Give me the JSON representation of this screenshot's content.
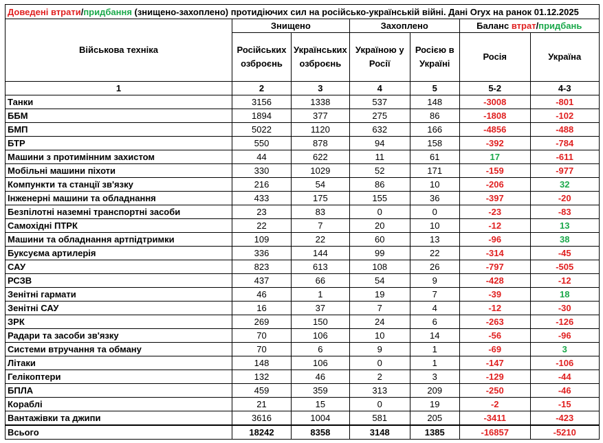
{
  "header": {
    "title_parts": [
      "Доведені втрати",
      "/",
      "придбання",
      " (знищено-захоплено) протидіючих сил на російсько-українській війні. Дані Oryx на ранок 01.12.2025"
    ]
  },
  "table": {
    "group_headers": {
      "destroyed": "Знищено",
      "captured": "Захоплено",
      "balance_parts": [
        "Баланс ",
        "втрат",
        "/",
        "придбань"
      ]
    },
    "column_headers": [
      "Військова техніка",
      "Російських озброєнь",
      "Українських озброєнь",
      "Україною у Росії",
      "Росією в Україні",
      "Росія",
      "Україна"
    ],
    "column_numbers": [
      "1",
      "2",
      "3",
      "4",
      "5",
      "5-2",
      "4-3"
    ],
    "rows": [
      [
        "Танки",
        3156,
        1338,
        537,
        148,
        -3008,
        -801
      ],
      [
        "ББМ",
        1894,
        377,
        275,
        86,
        -1808,
        -102
      ],
      [
        "БМП",
        5022,
        1120,
        632,
        166,
        -4856,
        -488
      ],
      [
        "БТР",
        550,
        878,
        94,
        158,
        -392,
        -784
      ],
      [
        "Машини з протимінним захистом",
        44,
        622,
        11,
        61,
        17,
        -611
      ],
      [
        "Мобільні машини піхоти",
        330,
        1029,
        52,
        171,
        -159,
        -977
      ],
      [
        "Компункти та станції зв'язку",
        216,
        54,
        86,
        10,
        -206,
        32
      ],
      [
        "Інженерні машини та обладнання",
        433,
        175,
        155,
        36,
        -397,
        -20
      ],
      [
        "Безпілотні наземні транспортні засоби",
        23,
        83,
        0,
        0,
        -23,
        -83
      ],
      [
        "Самохідні ПТРК",
        22,
        7,
        20,
        10,
        -12,
        13
      ],
      [
        "Машини та обладнання артпідтримки",
        109,
        22,
        60,
        13,
        -96,
        38
      ],
      [
        "Буксуєма артилерія",
        336,
        144,
        99,
        22,
        -314,
        -45
      ],
      [
        "САУ",
        823,
        613,
        108,
        26,
        -797,
        -505
      ],
      [
        "РСЗВ",
        437,
        66,
        54,
        9,
        -428,
        -12
      ],
      [
        "Зенітні гармати",
        46,
        1,
        19,
        7,
        -39,
        18
      ],
      [
        "Зенітні САУ",
        16,
        37,
        7,
        4,
        -12,
        -30
      ],
      [
        "ЗРК",
        269,
        150,
        24,
        6,
        -263,
        -126
      ],
      [
        "Радари та засоби зв'язку",
        70,
        106,
        10,
        14,
        -56,
        -96
      ],
      [
        "Системи втручання та обману",
        70,
        6,
        9,
        1,
        -69,
        3
      ],
      [
        "Літаки",
        148,
        106,
        0,
        1,
        -147,
        -106
      ],
      [
        "Гелікоптери",
        132,
        46,
        2,
        3,
        -129,
        -44
      ],
      [
        "БПЛА",
        459,
        359,
        313,
        209,
        -250,
        -46
      ],
      [
        "Кораблі",
        21,
        15,
        0,
        19,
        -2,
        -15
      ],
      [
        "Вантажівки та джипи",
        3616,
        1004,
        581,
        205,
        -3411,
        -423
      ]
    ],
    "total": [
      "Всього",
      18242,
      8358,
      3148,
      1385,
      -16857,
      -5210
    ]
  }
}
